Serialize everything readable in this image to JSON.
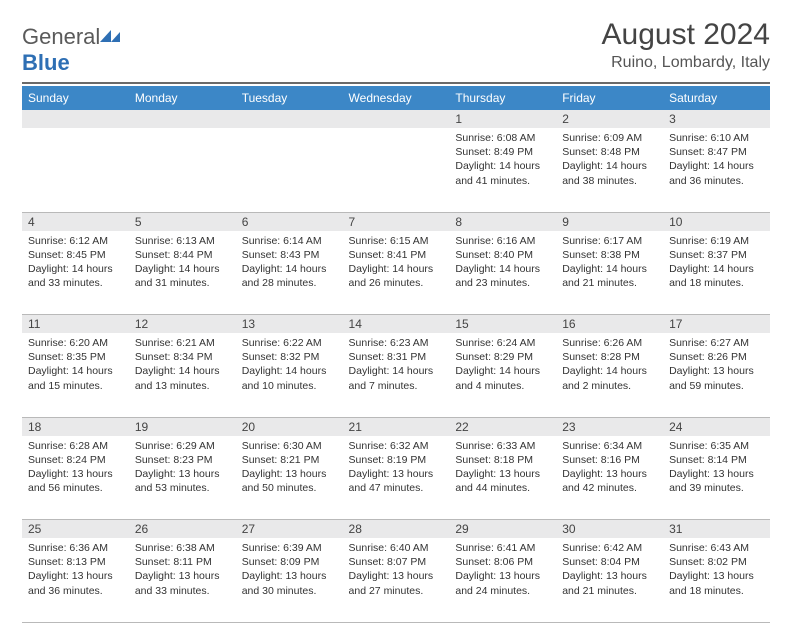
{
  "logo": {
    "textA": "General",
    "textB": "Blue"
  },
  "title": "August 2024",
  "location": "Ruino, Lombardy, Italy",
  "colors": {
    "header_bg": "#3c87c7",
    "header_text": "#ffffff",
    "daynum_bg": "#e9e9ea",
    "rule": "#6a6a6a",
    "cell_border": "#b9b9b9",
    "text": "#333333",
    "logo_gray": "#5a5a5a",
    "logo_blue": "#2e6fb4"
  },
  "typography": {
    "title_fontsize": 30,
    "location_fontsize": 16,
    "dayheader_fontsize": 12,
    "daynum_fontsize": 12,
    "body_fontsize": 10.5
  },
  "day_headers": [
    "Sunday",
    "Monday",
    "Tuesday",
    "Wednesday",
    "Thursday",
    "Friday",
    "Saturday"
  ],
  "weeks": [
    [
      null,
      null,
      null,
      null,
      {
        "n": "1",
        "sr": "6:08 AM",
        "ss": "8:49 PM",
        "dl": "14 hours and 41 minutes."
      },
      {
        "n": "2",
        "sr": "6:09 AM",
        "ss": "8:48 PM",
        "dl": "14 hours and 38 minutes."
      },
      {
        "n": "3",
        "sr": "6:10 AM",
        "ss": "8:47 PM",
        "dl": "14 hours and 36 minutes."
      }
    ],
    [
      {
        "n": "4",
        "sr": "6:12 AM",
        "ss": "8:45 PM",
        "dl": "14 hours and 33 minutes."
      },
      {
        "n": "5",
        "sr": "6:13 AM",
        "ss": "8:44 PM",
        "dl": "14 hours and 31 minutes."
      },
      {
        "n": "6",
        "sr": "6:14 AM",
        "ss": "8:43 PM",
        "dl": "14 hours and 28 minutes."
      },
      {
        "n": "7",
        "sr": "6:15 AM",
        "ss": "8:41 PM",
        "dl": "14 hours and 26 minutes."
      },
      {
        "n": "8",
        "sr": "6:16 AM",
        "ss": "8:40 PM",
        "dl": "14 hours and 23 minutes."
      },
      {
        "n": "9",
        "sr": "6:17 AM",
        "ss": "8:38 PM",
        "dl": "14 hours and 21 minutes."
      },
      {
        "n": "10",
        "sr": "6:19 AM",
        "ss": "8:37 PM",
        "dl": "14 hours and 18 minutes."
      }
    ],
    [
      {
        "n": "11",
        "sr": "6:20 AM",
        "ss": "8:35 PM",
        "dl": "14 hours and 15 minutes."
      },
      {
        "n": "12",
        "sr": "6:21 AM",
        "ss": "8:34 PM",
        "dl": "14 hours and 13 minutes."
      },
      {
        "n": "13",
        "sr": "6:22 AM",
        "ss": "8:32 PM",
        "dl": "14 hours and 10 minutes."
      },
      {
        "n": "14",
        "sr": "6:23 AM",
        "ss": "8:31 PM",
        "dl": "14 hours and 7 minutes."
      },
      {
        "n": "15",
        "sr": "6:24 AM",
        "ss": "8:29 PM",
        "dl": "14 hours and 4 minutes."
      },
      {
        "n": "16",
        "sr": "6:26 AM",
        "ss": "8:28 PM",
        "dl": "14 hours and 2 minutes."
      },
      {
        "n": "17",
        "sr": "6:27 AM",
        "ss": "8:26 PM",
        "dl": "13 hours and 59 minutes."
      }
    ],
    [
      {
        "n": "18",
        "sr": "6:28 AM",
        "ss": "8:24 PM",
        "dl": "13 hours and 56 minutes."
      },
      {
        "n": "19",
        "sr": "6:29 AM",
        "ss": "8:23 PM",
        "dl": "13 hours and 53 minutes."
      },
      {
        "n": "20",
        "sr": "6:30 AM",
        "ss": "8:21 PM",
        "dl": "13 hours and 50 minutes."
      },
      {
        "n": "21",
        "sr": "6:32 AM",
        "ss": "8:19 PM",
        "dl": "13 hours and 47 minutes."
      },
      {
        "n": "22",
        "sr": "6:33 AM",
        "ss": "8:18 PM",
        "dl": "13 hours and 44 minutes."
      },
      {
        "n": "23",
        "sr": "6:34 AM",
        "ss": "8:16 PM",
        "dl": "13 hours and 42 minutes."
      },
      {
        "n": "24",
        "sr": "6:35 AM",
        "ss": "8:14 PM",
        "dl": "13 hours and 39 minutes."
      }
    ],
    [
      {
        "n": "25",
        "sr": "6:36 AM",
        "ss": "8:13 PM",
        "dl": "13 hours and 36 minutes."
      },
      {
        "n": "26",
        "sr": "6:38 AM",
        "ss": "8:11 PM",
        "dl": "13 hours and 33 minutes."
      },
      {
        "n": "27",
        "sr": "6:39 AM",
        "ss": "8:09 PM",
        "dl": "13 hours and 30 minutes."
      },
      {
        "n": "28",
        "sr": "6:40 AM",
        "ss": "8:07 PM",
        "dl": "13 hours and 27 minutes."
      },
      {
        "n": "29",
        "sr": "6:41 AM",
        "ss": "8:06 PM",
        "dl": "13 hours and 24 minutes."
      },
      {
        "n": "30",
        "sr": "6:42 AM",
        "ss": "8:04 PM",
        "dl": "13 hours and 21 minutes."
      },
      {
        "n": "31",
        "sr": "6:43 AM",
        "ss": "8:02 PM",
        "dl": "13 hours and 18 minutes."
      }
    ]
  ],
  "labels": {
    "sunrise": "Sunrise:",
    "sunset": "Sunset:",
    "daylight": "Daylight:"
  }
}
